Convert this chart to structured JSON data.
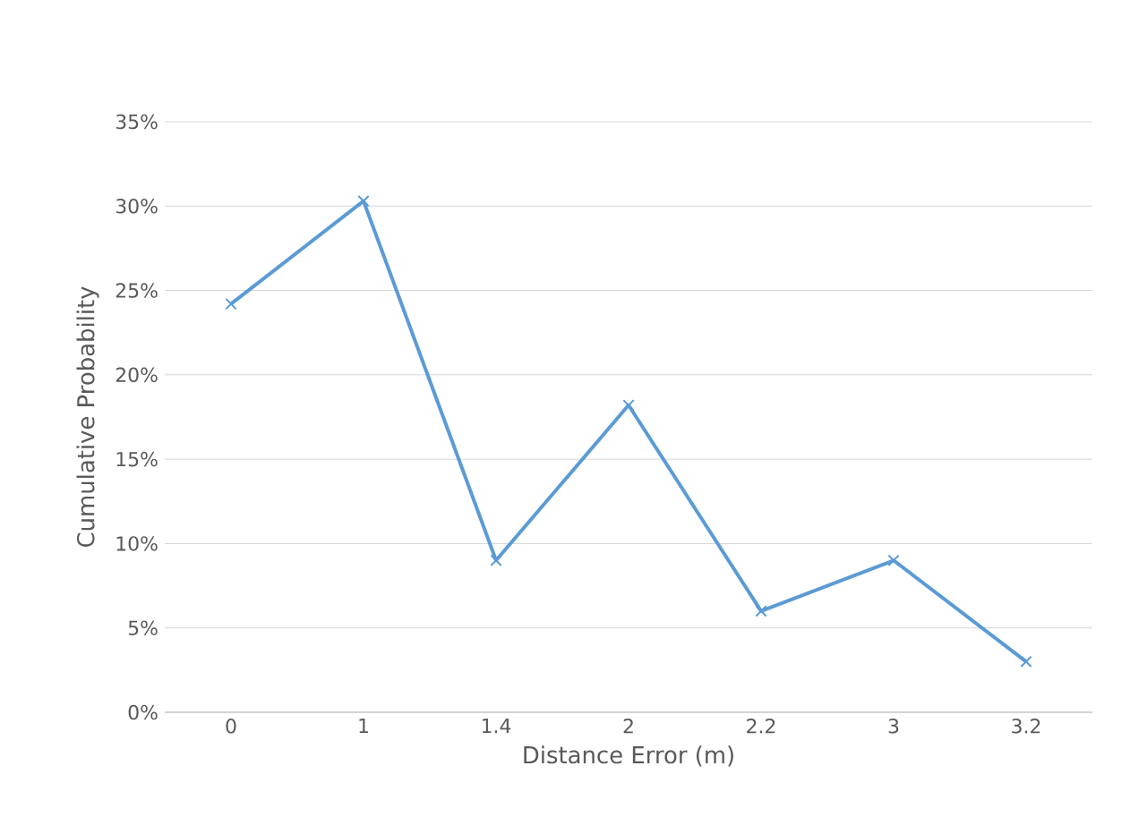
{
  "chart_data": {
    "type": "line",
    "xlabel": "Distance Error (m)",
    "ylabel": "Cumulative Probability",
    "categories": [
      "0",
      "1",
      "1.4",
      "2",
      "2.2",
      "3",
      "3.2"
    ],
    "values": [
      24.2,
      30.3,
      9,
      18.2,
      6,
      9,
      3
    ],
    "color": "#5b9bd5",
    "marker": "cross",
    "grid": "y",
    "ylim": [
      0,
      35
    ],
    "yticks": [
      {
        "value": 0,
        "label": "0%"
      },
      {
        "value": 5,
        "label": "5%"
      },
      {
        "value": 10,
        "label": "10%"
      },
      {
        "value": 15,
        "label": "15%"
      },
      {
        "value": 20,
        "label": "20%"
      },
      {
        "value": 25,
        "label": "25%"
      },
      {
        "value": 30,
        "label": "30%"
      },
      {
        "value": 35,
        "label": "35%"
      }
    ]
  }
}
